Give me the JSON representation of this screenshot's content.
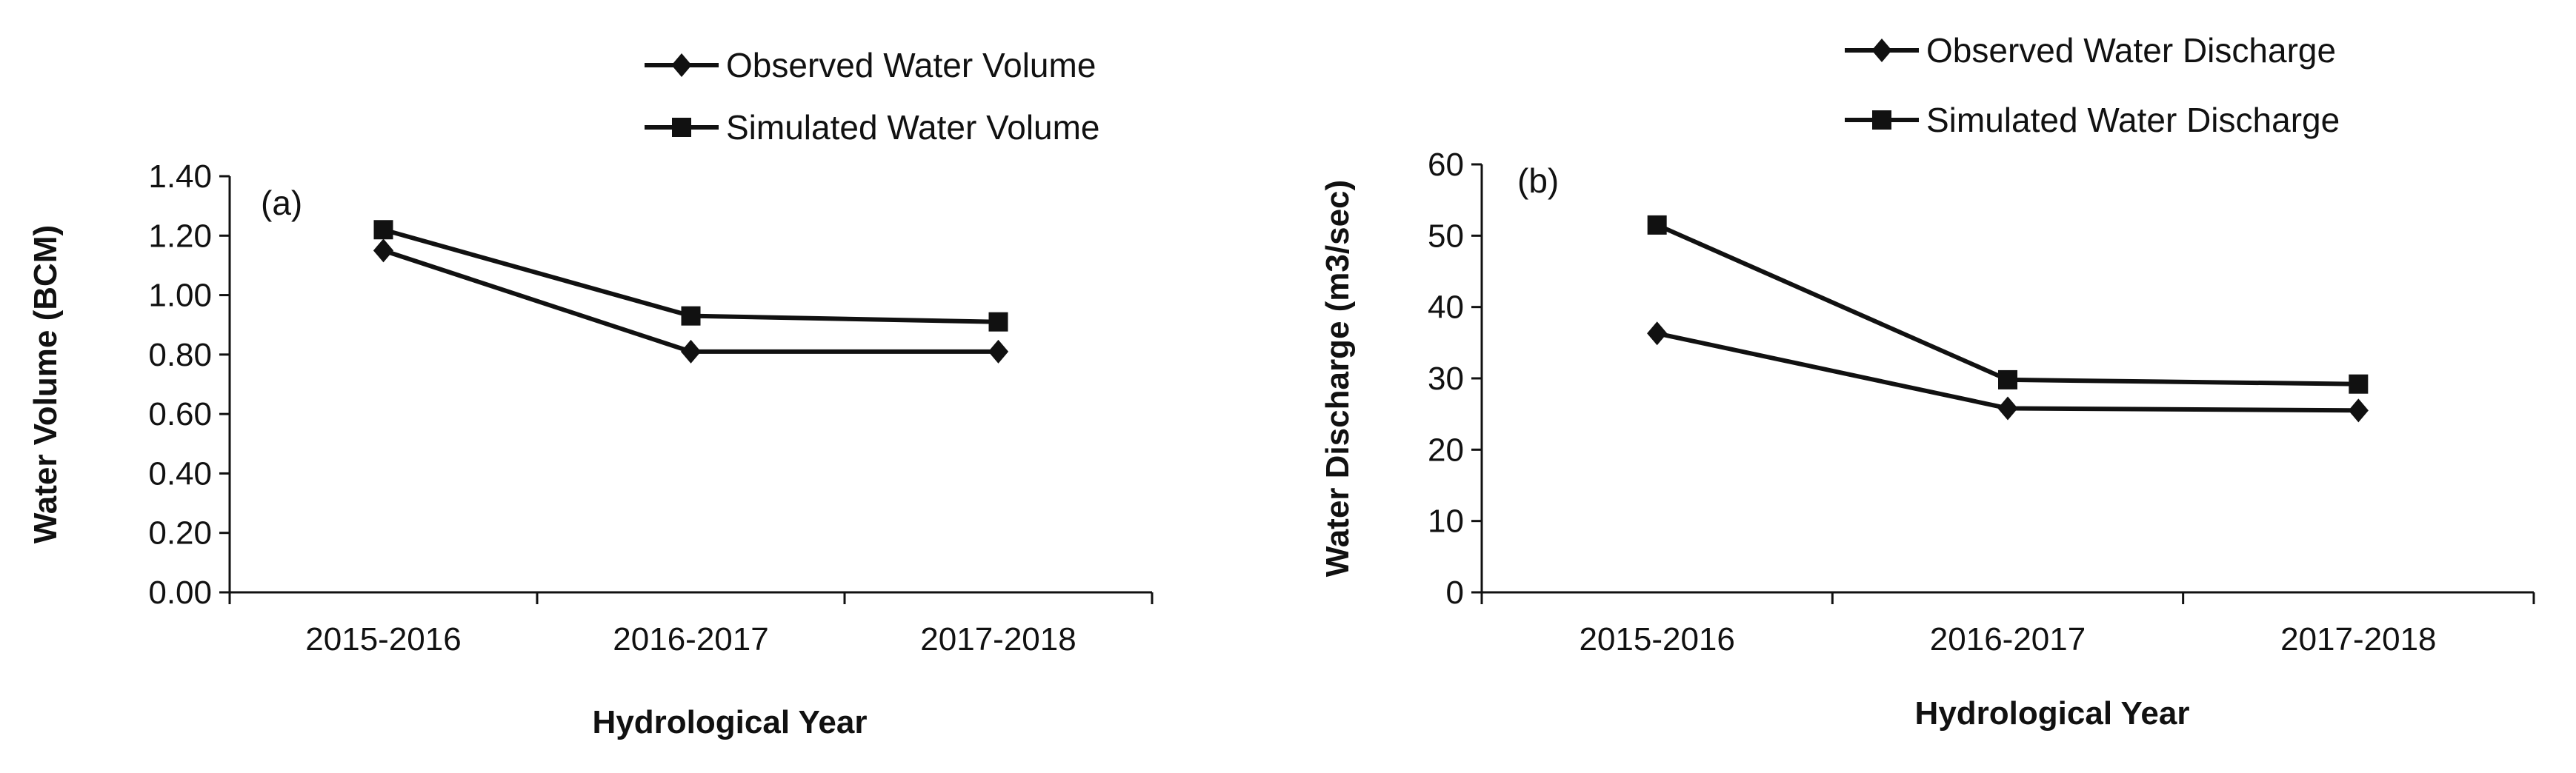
{
  "colors": {
    "line": "#111111",
    "background": "#ffffff"
  },
  "chart_data": [
    {
      "type": "line",
      "panel_label": "(a)",
      "categories": [
        "2015-2016",
        "2016-2017",
        "2017-2018"
      ],
      "series": [
        {
          "name": "Observed Water Volume",
          "marker": "diamond",
          "values": [
            1.15,
            0.81,
            0.81
          ]
        },
        {
          "name": "Simulated Water Volume",
          "marker": "square",
          "values": [
            1.22,
            0.93,
            0.91
          ]
        }
      ],
      "xlabel": "Hydrological Year",
      "ylabel": "Water Volume (BCM)",
      "ylim": [
        0,
        1.4
      ],
      "yticks": [
        "0.00",
        "0.20",
        "0.40",
        "0.60",
        "0.80",
        "1.00",
        "1.20",
        "1.40"
      ],
      "grid": false,
      "legend_position": "top-right"
    },
    {
      "type": "line",
      "panel_label": "(b)",
      "categories": [
        "2015-2016",
        "2016-2017",
        "2017-2018"
      ],
      "series": [
        {
          "name": "Observed Water Discharge",
          "marker": "diamond",
          "values": [
            36.3,
            25.8,
            25.5
          ]
        },
        {
          "name": "Simulated Water Discharge",
          "marker": "square",
          "values": [
            51.5,
            29.8,
            29.2
          ]
        }
      ],
      "xlabel": "Hydrological Year",
      "ylabel": "Water Discharge (m3/sec)",
      "ylim": [
        0,
        60
      ],
      "yticks": [
        "0",
        "10",
        "20",
        "30",
        "40",
        "50",
        "60"
      ],
      "grid": false,
      "legend_position": "top-right"
    }
  ]
}
